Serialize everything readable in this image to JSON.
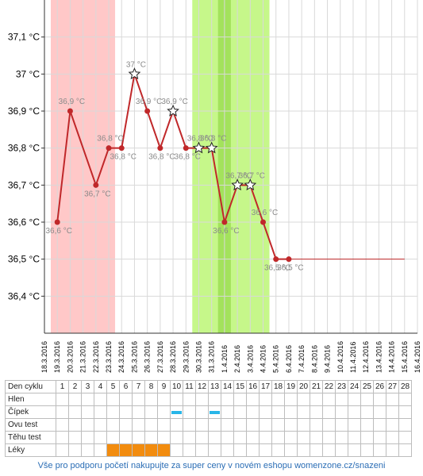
{
  "chart_data": {
    "type": "line",
    "ylim": [
      36.3,
      37.2
    ],
    "y_ticks": [
      {
        "v": 36.4,
        "label": "36,4 °C"
      },
      {
        "v": 36.5,
        "label": "36,5 °C"
      },
      {
        "v": 36.6,
        "label": "36,6 °C"
      },
      {
        "v": 36.7,
        "label": "36,7 °C"
      },
      {
        "v": 36.8,
        "label": "36,8 °C"
      },
      {
        "v": 36.9,
        "label": "36,9 °C"
      },
      {
        "v": 37.0,
        "label": "37 °C"
      },
      {
        "v": 37.1,
        "label": "37,1 °C"
      }
    ],
    "x_dates": [
      "18.3.2016",
      "19.3.2016",
      "20.3.2016",
      "21.3.2016",
      "22.3.2016",
      "23.3.2016",
      "24.3.2016",
      "25.3.2016",
      "26.3.2016",
      "27.3.2016",
      "28.3.2016",
      "29.3.2016",
      "30.3.2016",
      "31.3.2016",
      "1.4.2016",
      "2.4.2016",
      "3.4.2016",
      "4.4.2016",
      "5.4.2016",
      "6.4.2016",
      "7.4.2016",
      "8.4.2016",
      "9.4.2016",
      "10.4.2016",
      "11.4.2016",
      "12.4.2016",
      "13.4.2016",
      "14.4.2016",
      "15.4.2016",
      "16.4.2016"
    ],
    "bands": [
      {
        "from": "18.3.2016",
        "to": "23.3.2016",
        "color": "#ffc8c8"
      },
      {
        "from": "29.3.2016",
        "to": "4.4.2016",
        "color": "#c6f78a"
      },
      {
        "from": "31.3.2016",
        "to": "1.4.2016",
        "color": "#a3e25c"
      }
    ],
    "series": [
      {
        "color": "#c0282a",
        "points": [
          {
            "date": "19.3.2016",
            "value": 36.6,
            "label": "36,6 °C",
            "star": false
          },
          {
            "date": "20.3.2016",
            "value": 36.9,
            "label": "36,9 °C",
            "star": false
          },
          {
            "date": "22.3.2016",
            "value": 36.7,
            "label": "36,7 °C",
            "star": false
          },
          {
            "date": "23.3.2016",
            "value": 36.8,
            "label": "36,8 °C",
            "star": false
          },
          {
            "date": "24.3.2016",
            "value": 36.8,
            "label": "36,8 °C",
            "star": false
          },
          {
            "date": "25.3.2016",
            "value": 37.0,
            "label": "37 °C",
            "star": true
          },
          {
            "date": "26.3.2016",
            "value": 36.9,
            "label": "36,9 °C",
            "star": false
          },
          {
            "date": "27.3.2016",
            "value": 36.8,
            "label": "36,8 °C",
            "star": false
          },
          {
            "date": "28.3.2016",
            "value": 36.9,
            "label": "36,9 °C",
            "star": true
          },
          {
            "date": "29.3.2016",
            "value": 36.8,
            "label": "36,8 °C",
            "star": false
          },
          {
            "date": "30.3.2016",
            "value": 36.8,
            "label": "36,8 °C",
            "star": true
          },
          {
            "date": "31.3.2016",
            "value": 36.8,
            "label": "36,8 °C",
            "star": true
          },
          {
            "date": "1.4.2016",
            "value": 36.6,
            "label": "36,6 °C",
            "star": false
          },
          {
            "date": "2.4.2016",
            "value": 36.7,
            "label": "36,7 °C",
            "star": true
          },
          {
            "date": "3.4.2016",
            "value": 36.7,
            "label": "36,7 °C",
            "star": true
          },
          {
            "date": "4.4.2016",
            "value": 36.6,
            "label": "36,6 °C",
            "star": false
          },
          {
            "date": "5.4.2016",
            "value": 36.5,
            "label": "36,5 °C",
            "star": false
          },
          {
            "date": "6.4.2016",
            "value": 36.5,
            "label": "36,5 °C",
            "star": false
          }
        ],
        "extension": {
          "from": "6.4.2016",
          "to": "15.4.2016",
          "value": 36.5
        }
      }
    ],
    "grid": true
  },
  "table": {
    "header_label": "Den cyklu",
    "days": [
      "1",
      "2",
      "3",
      "4",
      "5",
      "6",
      "7",
      "8",
      "9",
      "10",
      "11",
      "12",
      "13",
      "14",
      "15",
      "16",
      "17",
      "18",
      "19",
      "20",
      "21",
      "22",
      "23",
      "24",
      "25",
      "26",
      "27",
      "28"
    ],
    "rows": [
      {
        "label": "Hlen",
        "marks": []
      },
      {
        "label": "Čípek",
        "marks": [
          10,
          13
        ]
      },
      {
        "label": "Ovu test",
        "marks": []
      },
      {
        "label": "Těhu test",
        "marks": []
      },
      {
        "label": "Léky",
        "marks": [
          5,
          6,
          7,
          8,
          9
        ]
      }
    ],
    "colors": {
      "mucus": "#29b6e8",
      "medication": "#f28c0f"
    }
  },
  "footer": "Vše pro podporu početí nakupujte za super ceny v novém eshopu womenzone.cz/snazeni"
}
